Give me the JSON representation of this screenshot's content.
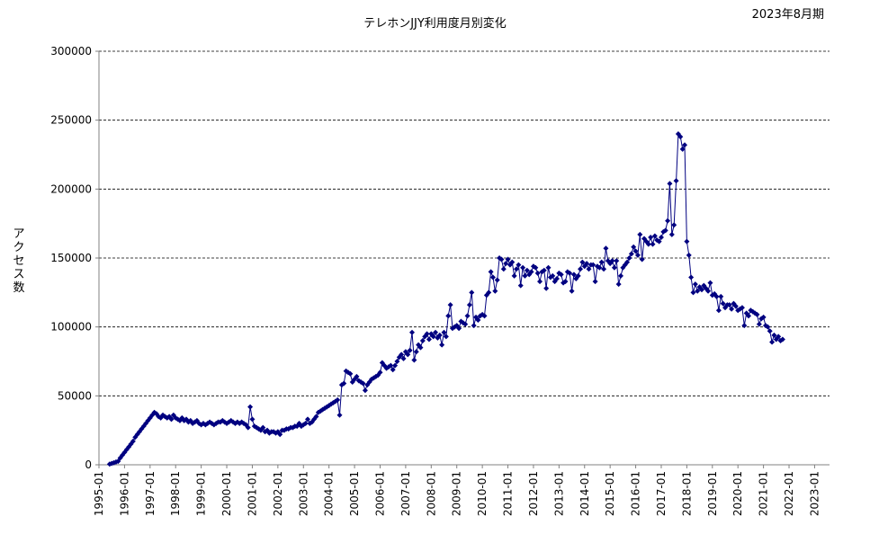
{
  "chart_data": {
    "type": "line",
    "title": "テレホンJJY利用度月別変化",
    "subtitle": "2023年8月期",
    "xlabel": "",
    "ylabel": "アクセス数",
    "ylim": [
      0,
      300000
    ],
    "yticks": [
      0,
      50000,
      100000,
      150000,
      200000,
      250000,
      300000
    ],
    "ytick_labels": [
      "0",
      "50000",
      "100000",
      "150000",
      "200000",
      "250000",
      "300000"
    ],
    "xlim": [
      "1995-01",
      "2023-08"
    ],
    "xtick_labels": [
      "1995-01",
      "1996-01",
      "1997-01",
      "1998-01",
      "1999-01",
      "2000-01",
      "2001-01",
      "2002-01",
      "2003-01",
      "2004-01",
      "2005-01",
      "2006-01",
      "2007-01",
      "2008-01",
      "2009-01",
      "2010-01",
      "2011-01",
      "2012-01",
      "2013-01",
      "2014-01",
      "2015-01",
      "2016-01",
      "2017-01",
      "2018-01",
      "2019-01",
      "2020-01",
      "2021-01",
      "2022-01",
      "2023-01"
    ],
    "grid": "horizontal dashed",
    "marker": "diamond",
    "colors": {
      "series": "#000080",
      "grid": "#000000",
      "axis": "#808080"
    },
    "series": [
      {
        "start": "1995-06",
        "values": [
          500,
          1000,
          1500,
          2000,
          2500,
          5000,
          7000,
          9000,
          11000,
          13000,
          15000,
          17000,
          20000,
          22000,
          24000,
          26000,
          28000,
          30000,
          32000,
          34000,
          36000,
          38000,
          37000,
          35000,
          34000,
          36000,
          35000,
          34000,
          35000,
          33000,
          36000,
          34000,
          33000,
          32000,
          34000,
          32000,
          33000,
          31000,
          32000,
          30000,
          31000,
          32000,
          30000,
          29000,
          30000,
          29000,
          30000,
          31000,
          30000,
          29000,
          30000,
          31000,
          31000,
          32000,
          31000,
          30000,
          31000,
          32000,
          31000,
          30000,
          31000,
          30000,
          31000,
          30000,
          29000,
          27000,
          42000,
          33000,
          28000,
          27000,
          26000,
          25000,
          27000,
          24000,
          25000,
          23000,
          24000,
          24000,
          23000,
          24000,
          22000,
          25000,
          25000,
          26000,
          26000,
          27000,
          27000,
          28000,
          28000,
          30000,
          28000,
          29000,
          30000,
          33000,
          30000,
          31000,
          33000,
          35000,
          38000,
          39000,
          40000,
          41000,
          42000,
          43000,
          44000,
          45000,
          46000,
          47000,
          36000,
          58000,
          59000,
          68000,
          67000,
          66000,
          60000,
          62000,
          64000,
          61000,
          60000,
          59000,
          54000,
          58000,
          60000,
          62000,
          63000,
          64000,
          65000,
          67000,
          74000,
          72000,
          70000,
          71000,
          72000,
          69000,
          72000,
          75000,
          78000,
          80000,
          77000,
          82000,
          80000,
          83000,
          96000,
          76000,
          82000,
          87000,
          85000,
          90000,
          93000,
          95000,
          91000,
          95000,
          93000,
          96000,
          92000,
          94000,
          87000,
          96000,
          93000,
          108000,
          116000,
          99000,
          100000,
          101000,
          99000,
          104000,
          103000,
          102000,
          108000,
          116000,
          125000,
          101000,
          107000,
          105000,
          108000,
          109000,
          108000,
          123000,
          125000,
          140000,
          136000,
          126000,
          134000,
          150000,
          149000,
          142000,
          146000,
          149000,
          145000,
          147000,
          137000,
          142000,
          145000,
          130000,
          143000,
          137000,
          141000,
          138000,
          140000,
          144000,
          143000,
          139000,
          133000,
          140000,
          141000,
          128000,
          143000,
          136000,
          137000,
          133000,
          135000,
          139000,
          138000,
          132000,
          133000,
          140000,
          139000,
          126000,
          138000,
          135000,
          137000,
          142000,
          147000,
          144000,
          146000,
          142000,
          145000,
          145000,
          133000,
          144000,
          143000,
          147000,
          142000,
          157000,
          148000,
          146000,
          148000,
          143000,
          148000,
          131000,
          137000,
          143000,
          145000,
          147000,
          150000,
          153000,
          158000,
          155000,
          152000,
          167000,
          149000,
          164000,
          162000,
          160000,
          165000,
          160000,
          166000,
          163000,
          162000,
          165000,
          169000,
          170000,
          177000,
          204000,
          167000,
          174000,
          206000,
          240000,
          238000,
          229000,
          232000,
          162000,
          152000,
          136000,
          125000,
          131000,
          126000,
          129000,
          127000,
          130000,
          128000,
          126000,
          132000,
          123000,
          124000,
          122000,
          112000,
          122000,
          117000,
          114000,
          116000,
          116000,
          113000,
          117000,
          115000,
          112000,
          113000,
          114000,
          101000,
          110000,
          108000,
          112000,
          111000,
          110000,
          109000,
          102000,
          106000,
          107000,
          101000,
          100000,
          97000,
          89000,
          94000,
          91000,
          93000,
          90000,
          91000
        ]
      }
    ]
  }
}
